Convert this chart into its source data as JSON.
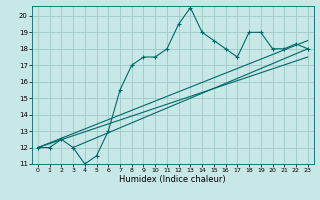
{
  "title": "",
  "xlabel": "Humidex (Indice chaleur)",
  "background_color": "#c8e8e8",
  "grid_color": "#a0c8c8",
  "line_color": "#006868",
  "xlim": [
    -0.5,
    23.5
  ],
  "ylim": [
    11,
    20.6
  ],
  "yticks": [
    11,
    12,
    13,
    14,
    15,
    16,
    17,
    18,
    19,
    20
  ],
  "xticks": [
    0,
    1,
    2,
    3,
    4,
    5,
    6,
    7,
    8,
    9,
    10,
    11,
    12,
    13,
    14,
    15,
    16,
    17,
    18,
    19,
    20,
    21,
    22,
    23
  ],
  "main_data_x": [
    0,
    1,
    2,
    3,
    4,
    5,
    6,
    7,
    8,
    9,
    10,
    11,
    12,
    13,
    14,
    15,
    16,
    17,
    18,
    19,
    20,
    21,
    22,
    23
  ],
  "main_data_y": [
    12.0,
    12.0,
    12.5,
    12.0,
    11.0,
    11.5,
    13.0,
    15.5,
    17.0,
    17.5,
    17.5,
    18.0,
    19.5,
    20.5,
    19.0,
    18.5,
    18.0,
    17.5,
    19.0,
    19.0,
    18.0,
    18.0,
    18.3,
    18.0
  ],
  "trend1_x": [
    0,
    23
  ],
  "trend1_y": [
    12.0,
    17.5
  ],
  "trend2_x": [
    0,
    23
  ],
  "trend2_y": [
    12.0,
    18.5
  ],
  "trend3_x": [
    3,
    23
  ],
  "trend3_y": [
    12.0,
    18.0
  ]
}
